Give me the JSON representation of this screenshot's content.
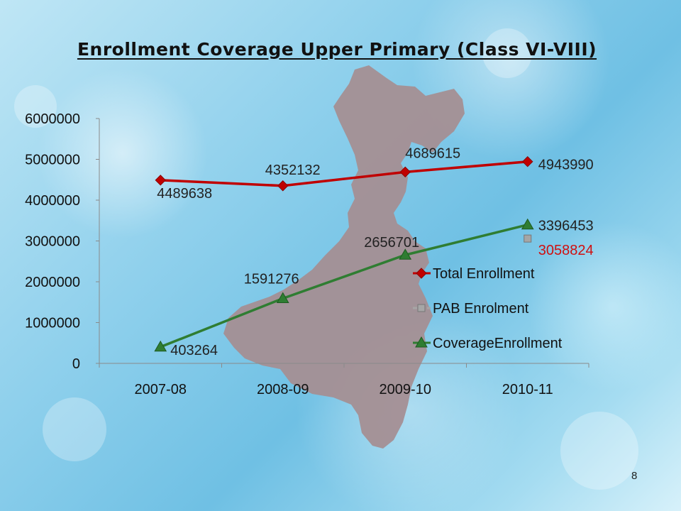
{
  "slide": {
    "title": "Enrollment Coverage Upper Primary (Class VI-VIII)",
    "page_number": "8"
  },
  "chart_data": {
    "type": "line",
    "title": "",
    "xlabel": "",
    "ylabel": "",
    "categories": [
      "2007-08",
      "2008-09",
      "2009-10",
      "2010-11"
    ],
    "y_ticks": [
      "0",
      "1000000",
      "2000000",
      "3000000",
      "4000000",
      "5000000",
      "6000000"
    ],
    "ylim": [
      0,
      6000000
    ],
    "grid": false,
    "legend_position": "right",
    "series": [
      {
        "name": "Total Enrollment",
        "values": [
          4489638,
          4352132,
          4689615,
          4943990
        ],
        "labels": [
          "4489638",
          "4352132",
          "4689615",
          "4943990"
        ],
        "color": "#c00000",
        "marker": "diamond",
        "label_color": "#222222"
      },
      {
        "name": "PAB Enrolment",
        "values": [
          null,
          null,
          null,
          3058824
        ],
        "labels": [
          "",
          "",
          "",
          "3058824"
        ],
        "color": "#a6a6a6",
        "marker": "square",
        "label_color": "#d01010"
      },
      {
        "name": "CoverageEnrollment",
        "values": [
          403264,
          1591276,
          2656701,
          3396453
        ],
        "labels": [
          "403264",
          "1591276",
          "2656701",
          "3396453"
        ],
        "color": "#2f7d32",
        "marker": "triangle",
        "label_color": "#222222"
      }
    ]
  }
}
